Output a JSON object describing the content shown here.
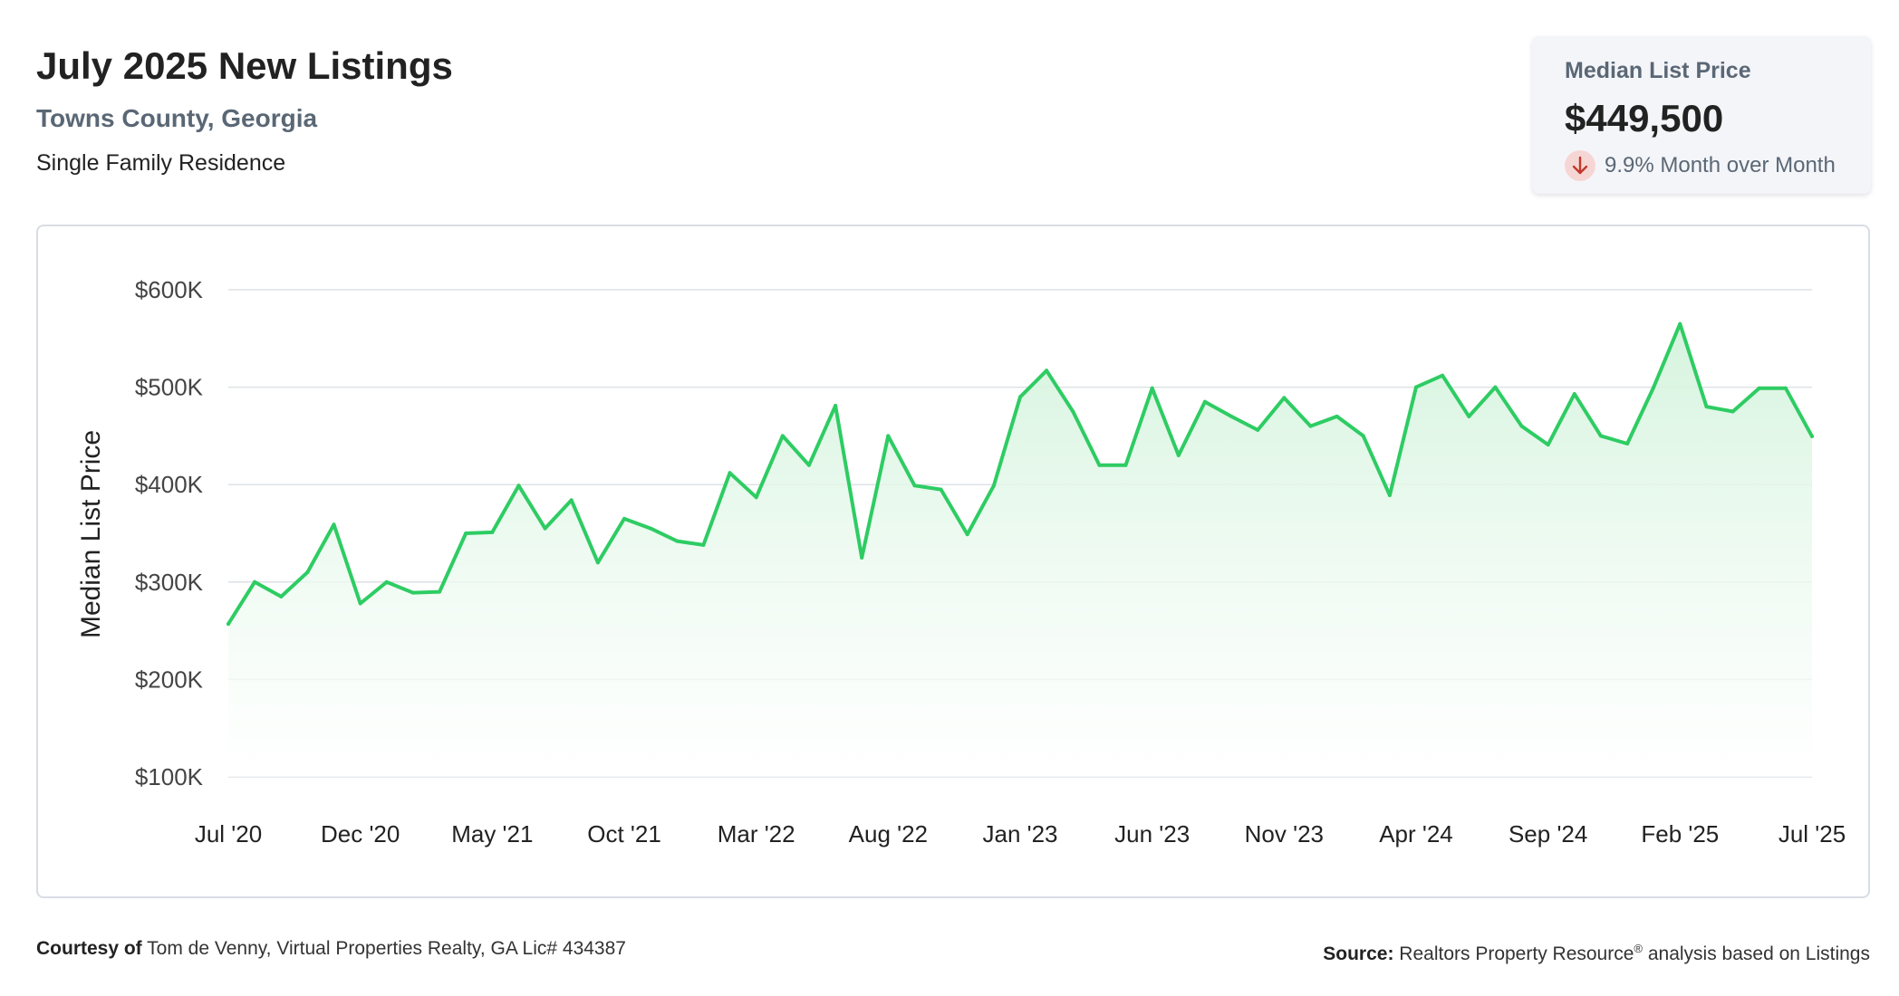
{
  "header": {
    "title": "July 2025 New Listings",
    "location": "Towns County, Georgia",
    "property_type": "Single Family Residence"
  },
  "stat_card": {
    "label": "Median List Price",
    "value": "$449,500",
    "change": "9.9% Month over Month",
    "change_direction": "down",
    "icon": "arrow-down-icon"
  },
  "colors": {
    "line": "#2ecc63",
    "fill_top": "#d3f3dc",
    "grid": "#dde2e6",
    "down_bg": "#f6d6d4",
    "down_arrow": "#c0392b"
  },
  "footer": {
    "courtesy_label": "Courtesy of",
    "courtesy_text": "Tom de Venny, Virtual Properties Realty, GA Lic# 434387",
    "source_label": "Source:",
    "source_text_1": "Realtors Property Resource",
    "source_sup": "®",
    "source_text_2": " analysis based on Listings"
  },
  "chart_data": {
    "type": "area",
    "ylabel": "Median List Price",
    "xlabel": "",
    "ylim": [
      100000,
      600000
    ],
    "y_ticks": [
      100000,
      200000,
      300000,
      400000,
      500000,
      600000
    ],
    "y_tick_labels": [
      "$100K",
      "$200K",
      "$300K",
      "$400K",
      "$500K",
      "$600K"
    ],
    "x_tick_labels": [
      "Jul '20",
      "Dec '20",
      "May '21",
      "Oct '21",
      "Mar '22",
      "Aug '22",
      "Jan '23",
      "Jun '23",
      "Nov '23",
      "Apr '24",
      "Sep '24",
      "Feb '25",
      "Jul '25"
    ],
    "x_tick_every": 5,
    "grid": true,
    "series": [
      {
        "name": "Median List Price",
        "values": [
          257000,
          300000,
          285000,
          310000,
          359000,
          278000,
          300000,
          289000,
          290000,
          350000,
          351000,
          399000,
          355000,
          384000,
          320000,
          365000,
          355000,
          342000,
          338000,
          412000,
          387000,
          450000,
          420000,
          481000,
          325000,
          450000,
          399000,
          395000,
          349000,
          399000,
          490000,
          517000,
          475000,
          420000,
          420000,
          499000,
          430000,
          485000,
          470000,
          456000,
          489000,
          460000,
          470000,
          450000,
          389000,
          500000,
          512000,
          470000,
          500000,
          460000,
          441000,
          493000,
          450000,
          442000,
          500000,
          565000,
          480000,
          475000,
          499000,
          499000,
          449500
        ]
      }
    ]
  }
}
